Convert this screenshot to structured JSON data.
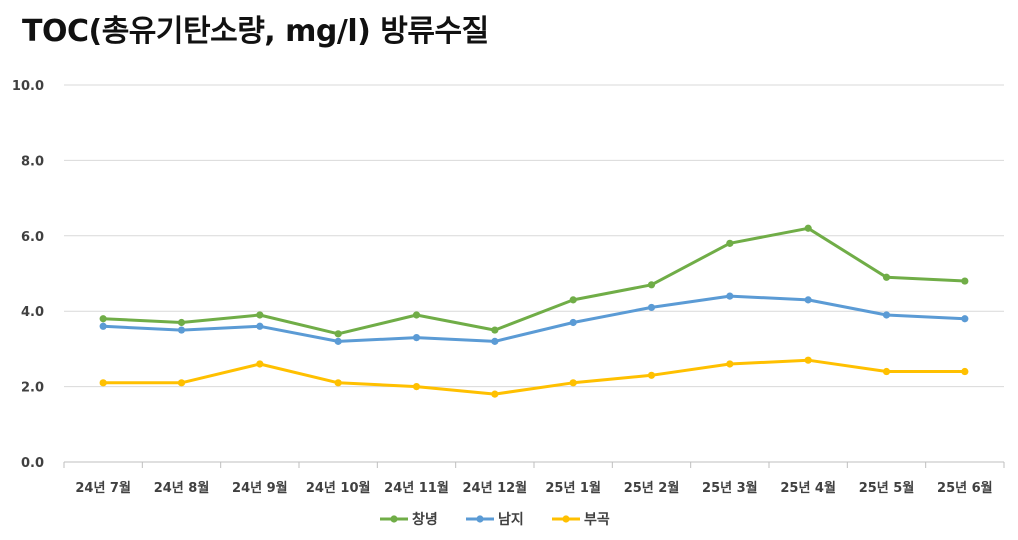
{
  "chart_data": {
    "type": "line",
    "title": "TOC(총유기탄소량, mg/l) 방류수질",
    "categories": [
      "24년 7월",
      "24년 8월",
      "24년 9월",
      "24년 10월",
      "24년 11월",
      "24년 12월",
      "25년 1월",
      "25년 2월",
      "25년 3월",
      "25년 4월",
      "25년 5월",
      "25년 6월"
    ],
    "y_ticks": [
      "0.0",
      "2.0",
      "4.0",
      "6.0",
      "8.0",
      "10.0"
    ],
    "ylim": [
      0,
      10
    ],
    "grid": true,
    "legend_position": "bottom",
    "series": [
      {
        "name": "창녕",
        "color": "#70ad47",
        "values": [
          3.8,
          3.7,
          3.9,
          3.4,
          3.9,
          3.5,
          4.3,
          4.7,
          5.8,
          6.2,
          4.9,
          4.8
        ]
      },
      {
        "name": "남지",
        "color": "#5b9bd5",
        "values": [
          3.6,
          3.5,
          3.6,
          3.2,
          3.3,
          3.2,
          3.7,
          4.1,
          4.4,
          4.3,
          3.9,
          3.8
        ]
      },
      {
        "name": "부곡",
        "color": "#ffc000",
        "values": [
          2.1,
          2.1,
          2.6,
          2.1,
          2.0,
          1.8,
          2.1,
          2.3,
          2.6,
          2.7,
          2.4,
          2.4
        ]
      }
    ]
  }
}
